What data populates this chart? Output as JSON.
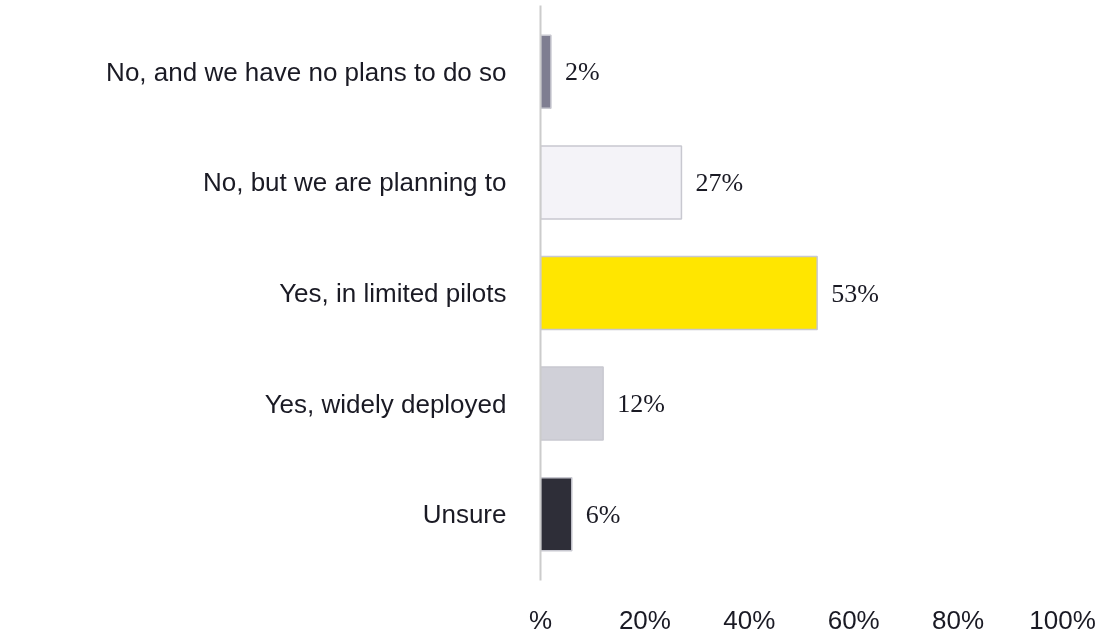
{
  "chart_data": {
    "type": "bar",
    "orientation": "horizontal",
    "categories": [
      "No, and we have no plans to do so",
      "No, but we are planning to",
      "Yes, in limited pilots",
      "Yes, widely deployed",
      "Unsure"
    ],
    "values": [
      2,
      27,
      53,
      12,
      6
    ],
    "colors": [
      "#7f7e91",
      "#f4f3f8",
      "#ffe600",
      "#d0d0d8",
      "#2e2e38"
    ],
    "value_labels": [
      "2%",
      "27%",
      "53%",
      "12%",
      "6%"
    ],
    "xlim": [
      0,
      100
    ],
    "xticks": [
      {
        "value": 0,
        "label": "%"
      },
      {
        "value": 20,
        "label": "20%"
      },
      {
        "value": 40,
        "label": "40%"
      },
      {
        "value": 60,
        "label": "60%"
      },
      {
        "value": 80,
        "label": "80%"
      },
      {
        "value": 100,
        "label": "100%"
      }
    ]
  }
}
